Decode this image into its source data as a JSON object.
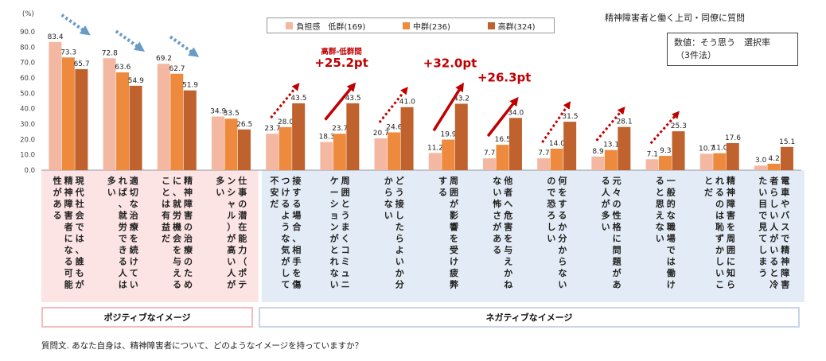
{
  "chart_data": {
    "type": "bar",
    "title": "精神障害者と働く上司・同僚に質問",
    "ylabel": "(%)",
    "ylim": [
      0,
      90
    ],
    "yticks": [
      "0.0",
      "10.0",
      "20.0",
      "30.0",
      "40.0",
      "50.0",
      "60.0",
      "70.0",
      "80.0",
      "90.0"
    ],
    "note_line1": "数値：そう思う　選択率",
    "note_line2": "（3件法）",
    "legend_position": "top-center",
    "series": [
      {
        "name": "負担感　低群(169)",
        "color": "#f4b8a2",
        "values": [
          83.4,
          72.8,
          69.2,
          34.9,
          23.7,
          18.3,
          20.7,
          11.2,
          7.7,
          7.7,
          8.9,
          7.1,
          10.7,
          3.0
        ]
      },
      {
        "name": "中群(236)",
        "color": "#ee8a3e",
        "values": [
          73.3,
          63.6,
          62.7,
          33.5,
          28.0,
          23.7,
          24.6,
          19.9,
          16.5,
          14.0,
          13.1,
          9.3,
          11.0,
          4.2
        ]
      },
      {
        "name": "高群(324)",
        "color": "#c0622e",
        "values": [
          65.7,
          54.9,
          51.9,
          26.5,
          43.5,
          43.5,
          41.0,
          43.2,
          34.0,
          31.5,
          28.1,
          25.3,
          17.6,
          15.1
        ]
      }
    ],
    "categories": [
      {
        "lines": [
          "現代社会では、誰もが",
          "精神障害者になる可能",
          "性がある"
        ]
      },
      {
        "lines": [
          "適切な治療を続けてい",
          "れば、就労できる人は",
          "多い"
        ]
      },
      {
        "lines": [
          "精神障害の治療のため",
          "に、就労機会を与える",
          "ことは有益だ"
        ]
      },
      {
        "lines": [
          "仕事の潜在能力（ポテ",
          "ンシャル）が高い人が",
          "多い"
        ]
      },
      {
        "lines": [
          "接する場合、相手を傷",
          "つけるような気がして",
          "不安だ"
        ]
      },
      {
        "lines": [
          "周囲とうまくコミュニ",
          "ケーションがとれない"
        ]
      },
      {
        "lines": [
          "どう接したらよいか分",
          "からない"
        ]
      },
      {
        "lines": [
          "周囲が影響を受け疲弊",
          "する"
        ]
      },
      {
        "lines": [
          "他者へ危害を与えかね",
          "ない怖さがある"
        ]
      },
      {
        "lines": [
          "何をするか分からない",
          "ので恐ろしい"
        ]
      },
      {
        "lines": [
          "元々の性格に問題があ",
          "る人が多い"
        ]
      },
      {
        "lines": [
          "一般的な職場では働け",
          "ると思えない"
        ]
      },
      {
        "lines": [
          "精神障害を周囲に知ら",
          "れるのは恥ずかしいこ",
          "とだ"
        ]
      },
      {
        "lines": [
          "電車やバスで精神障害",
          "者らしい人がいると冷",
          "たい目で見てしまう"
        ]
      }
    ],
    "annotations": [
      {
        "type": "decrease-arrow",
        "category": 0
      },
      {
        "type": "decrease-arrow",
        "category": 1
      },
      {
        "type": "decrease-arrow",
        "category": 2
      },
      {
        "type": "increase-arrow-dotted",
        "category": 4
      },
      {
        "type": "increase-arrow-solid",
        "category": 5,
        "label": "+25.2pt",
        "sublabel": "高群-低群間"
      },
      {
        "type": "increase-arrow-dotted",
        "category": 6
      },
      {
        "type": "increase-arrow-solid",
        "category": 7,
        "label": "+32.0pt"
      },
      {
        "type": "increase-arrow-solid",
        "category": 8,
        "label": "+26.3pt"
      },
      {
        "type": "increase-arrow-dotted",
        "category": 9
      },
      {
        "type": "increase-arrow-dotted",
        "category": 10
      },
      {
        "type": "increase-arrow-dotted",
        "category": 11
      }
    ],
    "groups": [
      {
        "label": "ポジティブなイメージ",
        "categories": [
          0,
          1,
          2,
          3
        ]
      },
      {
        "label": "ネガティブなイメージ",
        "categories": [
          4,
          5,
          6,
          7,
          8,
          9,
          10,
          11,
          12,
          13
        ]
      }
    ]
  },
  "question": "質問文. あなた自身は、精神障害者について、どのようなイメージを持っていますか？"
}
